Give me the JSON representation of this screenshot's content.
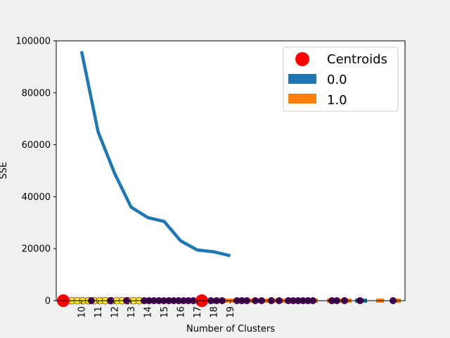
{
  "chart_data": {
    "type": "line",
    "xlabel": "Number of Clusters",
    "ylabel": "SSE",
    "yticks": [
      "0",
      "20000",
      "40000",
      "60000",
      "80000",
      "100000"
    ],
    "ytick_values": [
      0,
      20000,
      40000,
      60000,
      80000,
      100000
    ],
    "ylim": [
      0,
      100000
    ],
    "grid": false,
    "legend_placement": "top-right",
    "legend": [
      {
        "label": "Centroids",
        "kind": "marker",
        "color": "#ff0000"
      },
      {
        "label": "0.0",
        "kind": "patch",
        "color": "#1f77b4"
      },
      {
        "label": "1.0",
        "kind": "patch",
        "color": "#ff7f0e"
      }
    ],
    "series": [
      {
        "color": "#1f77b4",
        "x": [
          "10",
          "11",
          "12",
          "13",
          "14",
          "15",
          "16",
          "17",
          "18",
          "19"
        ],
        "y": [
          96000,
          65000,
          49000,
          36000,
          32000,
          30500,
          23000,
          19500,
          18800,
          17300
        ]
      }
    ],
    "centroids": {
      "color": "#ff0000",
      "count": 2,
      "y": [
        0,
        0
      ]
    },
    "bars": {
      "0.0": {
        "color": "#1f77b4",
        "height": 0
      },
      "1.0": {
        "color": "#ff7f0e",
        "height": 0
      }
    },
    "scatter": {
      "colors": [
        "#440154",
        "#fde725"
      ],
      "y": 0
    }
  }
}
